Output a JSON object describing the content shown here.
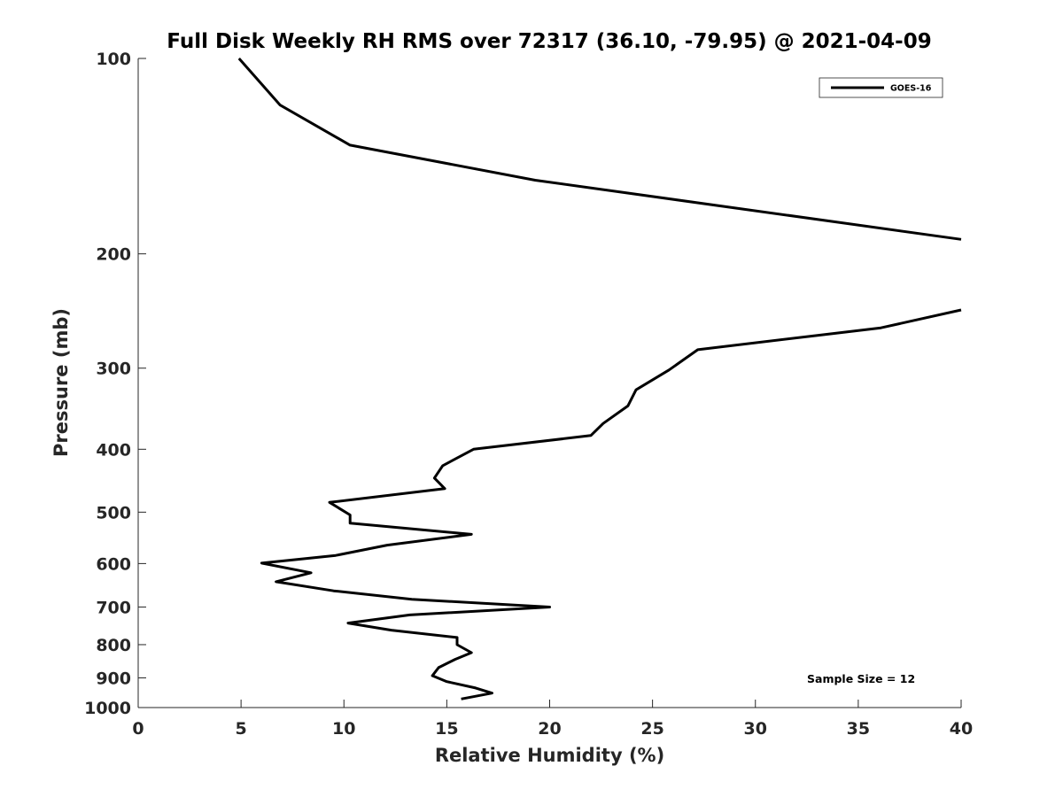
{
  "chart_data": {
    "type": "line",
    "title": "Full Disk Weekly RH RMS over 72317 (36.10, -79.95) @ 2021-04-09",
    "xlabel": "Relative Humidity (%)",
    "ylabel": "Pressure (mb)",
    "xlim": [
      0,
      40
    ],
    "ylim": [
      100,
      1000
    ],
    "yscale": "log",
    "y_reversed": true,
    "x_ticks": [
      "0",
      "5",
      "10",
      "15",
      "20",
      "25",
      "30",
      "35",
      "40"
    ],
    "y_ticks": [
      "100",
      "200",
      "300",
      "400",
      "500",
      "600",
      "700",
      "800",
      "900",
      "1000"
    ],
    "grid": false,
    "legend": {
      "position": "top-right",
      "entries": [
        "GOES-16"
      ]
    },
    "annotation": "Sample Size = 12",
    "series": [
      {
        "name": "GOES-16",
        "color": "#000000",
        "segments": [
          {
            "x": [
              4.9,
              6.9,
              10.3,
              19.3,
              40.0
            ],
            "y": [
              100,
              118,
              136,
              154,
              190
            ]
          },
          {
            "x": [
              40.0,
              36.1,
              27.2,
              25.8,
              24.2,
              23.8,
              22.6,
              22.0,
              16.3,
              14.8,
              14.4,
              14.9,
              9.3,
              10.3,
              10.3,
              16.2,
              12.1,
              9.6,
              6.0,
              8.4,
              6.7,
              9.5,
              13.3,
              20.0,
              13.2,
              10.2,
              12.3,
              15.5,
              15.5,
              16.2,
              15.4,
              14.6,
              14.3,
              15.0,
              16.4,
              17.2,
              15.7
            ],
            "y": [
              244,
              260,
              281,
              302,
              324,
              343,
              365,
              381,
              400,
              424,
              443,
              460,
              483,
              505,
              520,
              541,
              562,
              583,
              599,
              620,
              640,
              661,
              681,
              700,
              720,
              741,
              760,
              780,
              800,
              823,
              843,
              868,
              893,
              912,
              933,
              950,
              970
            ]
          }
        ]
      }
    ]
  }
}
